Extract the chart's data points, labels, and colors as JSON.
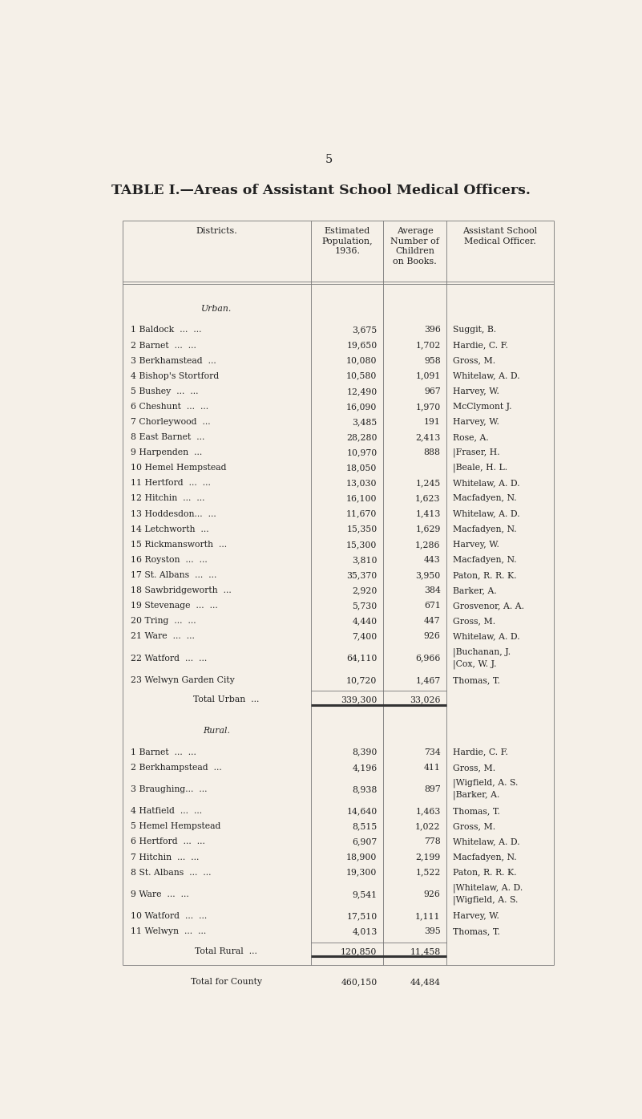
{
  "page_number": "5",
  "title": "TABLE I.—Areas of Assistant School Medical Officers.",
  "bg_color": "#f5f0e8",
  "text_color": "#222222",
  "urban_label": "Urban.",
  "rural_label": "Rural.",
  "urban_rows": [
    [
      "1 Baldock  ...  ...",
      "3,675",
      "396",
      "Suggit, B."
    ],
    [
      "2 Barnet  ...  ...",
      "19,650",
      "1,702",
      "Hardie, C. F."
    ],
    [
      "3 Berkhamstead  ...",
      "10,080",
      "958",
      "Gross, M."
    ],
    [
      "4 Bishop's Stortford",
      "10,580",
      "1,091",
      "Whitelaw, A. D."
    ],
    [
      "5 Bushey  ...  ...",
      "12,490",
      "967",
      "Harvey, W."
    ],
    [
      "6 Cheshunt  ...  ...",
      "16,090",
      "1,970",
      "McClymont J."
    ],
    [
      "7 Chorleywood  ...",
      "3,485",
      "191",
      "Harvey, W."
    ],
    [
      "8 East Barnet  ...",
      "28,280",
      "2,413",
      "Rose, A."
    ],
    [
      "9 Harpenden  ...",
      "10,970",
      "888",
      "|Fraser, H."
    ],
    [
      "10 Hemel Hempstead",
      "18,050",
      "",
      "|Beale, H. L."
    ],
    [
      "11 Hertford  ...  ...",
      "13,030",
      "1,245",
      "Whitelaw, A. D."
    ],
    [
      "12 Hitchin  ...  ...",
      "16,100",
      "1,623",
      "Macfadyen, N."
    ],
    [
      "13 Hoddesdon...  ...",
      "11,670",
      "1,413",
      "Whitelaw, A. D."
    ],
    [
      "14 Letchworth  ...",
      "15,350",
      "1,629",
      "Macfadyen, N."
    ],
    [
      "15 Rickmansworth  ...",
      "15,300",
      "1,286",
      "Harvey, W."
    ],
    [
      "16 Royston  ...  ...",
      "3,810",
      "443",
      "Macfadyen, N."
    ],
    [
      "17 St. Albans  ...  ...",
      "35,370",
      "3,950",
      "Paton, R. R. K."
    ],
    [
      "18 Sawbridgeworth  ...",
      "2,920",
      "384",
      "Barker, A."
    ],
    [
      "19 Stevenage  ...  ...",
      "5,730",
      "671",
      "Grosvenor, A. A."
    ],
    [
      "20 Tring  ...  ...",
      "4,440",
      "447",
      "Gross, M."
    ],
    [
      "21 Ware  ...  ...",
      "7,400",
      "926",
      "Whitelaw, A. D."
    ],
    [
      "22 Watford  ...  ...",
      "64,110",
      "6,966",
      [
        "|Buchanan, J.",
        "|Cox, W. J."
      ]
    ],
    [
      "23 Welwyn Garden City",
      "10,720",
      "1,467",
      "Thomas, T."
    ]
  ],
  "urban_total": [
    "Total Urban  ...",
    "339,300",
    "33,026"
  ],
  "rural_rows": [
    [
      "1 Barnet  ...  ...",
      "8,390",
      "734",
      "Hardie, C. F."
    ],
    [
      "2 Berkhampstead  ...",
      "4,196",
      "411",
      "Gross, M."
    ],
    [
      "3 Braughing...  ...",
      "8,938",
      "897",
      [
        "|Wigfield, A. S.",
        "|Barker, A."
      ]
    ],
    [
      "4 Hatfield  ...  ...",
      "14,640",
      "1,463",
      "Thomas, T."
    ],
    [
      "5 Hemel Hempstead",
      "8,515",
      "1,022",
      "Gross, M."
    ],
    [
      "6 Hertford  ...  ...",
      "6,907",
      "778",
      "Whitelaw, A. D."
    ],
    [
      "7 Hitchin  ...  ...",
      "18,900",
      "2,199",
      "Macfadyen, N."
    ],
    [
      "8 St. Albans  ...  ...",
      "19,300",
      "1,522",
      "Paton, R. R. K."
    ],
    [
      "9 Ware  ...  ...",
      "9,541",
      "926",
      [
        "|Whitelaw, A. D.",
        "|Wigfield, A. S."
      ]
    ],
    [
      "10 Watford  ...  ...",
      "17,510",
      "1,111",
      "Harvey, W."
    ],
    [
      "11 Welwyn  ...  ...",
      "4,013",
      "395",
      "Thomas, T."
    ]
  ],
  "rural_total": [
    "Total Rural  ...",
    "120,850",
    "11,458"
  ],
  "county_total": [
    "Total for County",
    "460,150",
    "44,484"
  ]
}
